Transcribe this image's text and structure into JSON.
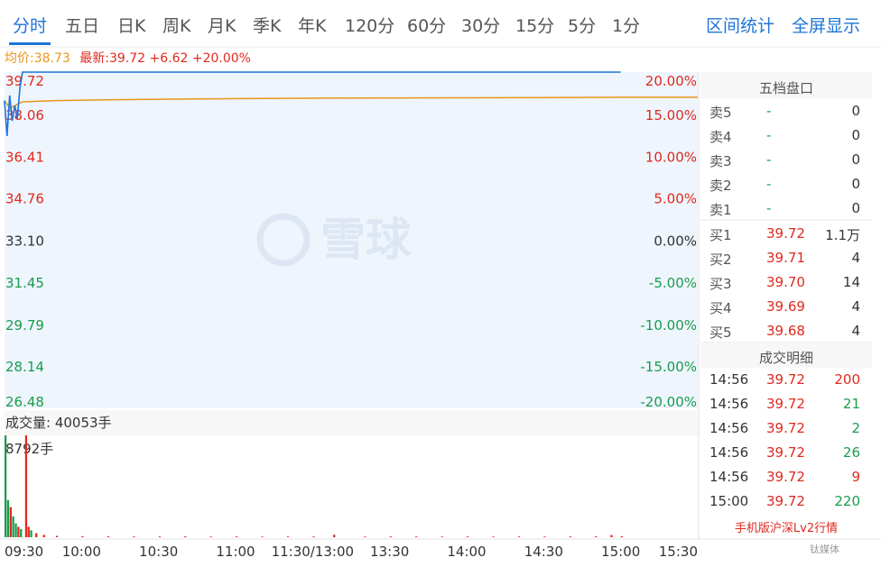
{
  "tabs": [
    {
      "label": "分时",
      "active": true
    },
    {
      "label": "五日"
    },
    {
      "label": "日K"
    },
    {
      "label": "周K"
    },
    {
      "label": "月K"
    },
    {
      "label": "季K"
    },
    {
      "label": "年K"
    },
    {
      "label": "120分"
    },
    {
      "label": "60分"
    },
    {
      "label": "30分"
    },
    {
      "label": "15分"
    },
    {
      "label": "5分"
    },
    {
      "label": "1分"
    }
  ],
  "links": {
    "interval": "区间统计",
    "fullscreen": "全屏显示"
  },
  "info": {
    "avg": "均价:38.73",
    "latest": "最新:39.72 +6.62 +20.00%"
  },
  "watermark": "雪球",
  "volume_label": "成交量: 40053手",
  "volume_max_label": "8792手",
  "orderbook": {
    "title": "五档盘口",
    "sell": [
      {
        "label": "卖5",
        "price": "-",
        "vol": "0"
      },
      {
        "label": "卖4",
        "price": "-",
        "vol": "0"
      },
      {
        "label": "卖3",
        "price": "-",
        "vol": "0"
      },
      {
        "label": "卖2",
        "price": "-",
        "vol": "0"
      },
      {
        "label": "卖1",
        "price": "-",
        "vol": "0"
      }
    ],
    "buy": [
      {
        "label": "买1",
        "price": "39.72",
        "vol": "1.1万"
      },
      {
        "label": "买2",
        "price": "39.71",
        "vol": "4"
      },
      {
        "label": "买3",
        "price": "39.70",
        "vol": "14"
      },
      {
        "label": "买4",
        "price": "39.69",
        "vol": "4"
      },
      {
        "label": "买5",
        "price": "39.68",
        "vol": "4"
      }
    ]
  },
  "trades": {
    "title": "成交明细",
    "rows": [
      {
        "time": "14:56",
        "price": "39.72",
        "vol": "200",
        "side": "buy"
      },
      {
        "time": "14:56",
        "price": "39.72",
        "vol": "21",
        "side": "sell"
      },
      {
        "time": "14:56",
        "price": "39.72",
        "vol": "2",
        "side": "sell"
      },
      {
        "time": "14:56",
        "price": "39.72",
        "vol": "26",
        "side": "sell"
      },
      {
        "time": "14:56",
        "price": "39.72",
        "vol": "9",
        "side": "buy"
      },
      {
        "time": "15:00",
        "price": "39.72",
        "vol": "220",
        "side": "sell"
      }
    ]
  },
  "promo": "手机版沪深Lv2行情",
  "logo": "钛媒体",
  "colors": {
    "price_line": "#1e74d9",
    "avg_line": "#e8961c",
    "up": "#e0291e",
    "down": "#1a9c4d",
    "area": "#eef5fd"
  },
  "chart_data": {
    "type": "line",
    "y_ticks": [
      {
        "price": "39.72",
        "pct": "20.00%"
      },
      {
        "price": "38.06",
        "pct": "15.00%"
      },
      {
        "price": "36.41",
        "pct": "10.00%"
      },
      {
        "price": "34.76",
        "pct": "5.00%"
      },
      {
        "price": "33.10",
        "pct": "0.00%"
      },
      {
        "price": "31.45",
        "pct": "-5.00%"
      },
      {
        "price": "29.79",
        "pct": "-10.00%"
      },
      {
        "price": "28.14",
        "pct": "-15.00%"
      },
      {
        "price": "26.48",
        "pct": "-20.00%"
      }
    ],
    "ylim": [
      26.48,
      39.72
    ],
    "prev_close": 33.1,
    "x_ticks": [
      "09:30",
      "10:00",
      "10:30",
      "11:00",
      "11:30/13:00",
      "13:30",
      "14:00",
      "14:30",
      "15:00",
      "15:30"
    ],
    "x_tick_minutes": [
      0,
      30,
      60,
      90,
      120,
      150,
      180,
      210,
      240,
      270
    ],
    "xlim_minutes": [
      0,
      270
    ],
    "price_series": [
      [
        0,
        38.6
      ],
      [
        1,
        37.2
      ],
      [
        2,
        38.8
      ],
      [
        3,
        37.8
      ],
      [
        4,
        38.4
      ],
      [
        5,
        37.9
      ],
      [
        6,
        39.1
      ],
      [
        7,
        39.72
      ],
      [
        240,
        39.72
      ]
    ],
    "avg_series": [
      [
        0,
        38.6
      ],
      [
        2,
        38.3
      ],
      [
        4,
        38.4
      ],
      [
        7,
        38.55
      ],
      [
        20,
        38.6
      ],
      [
        40,
        38.63
      ],
      [
        70,
        38.66
      ],
      [
        100,
        38.68
      ],
      [
        140,
        38.7
      ],
      [
        180,
        38.71
      ],
      [
        210,
        38.72
      ],
      [
        240,
        38.73
      ],
      [
        270,
        38.73
      ]
    ],
    "volume_series": [
      [
        0,
        8792,
        "down"
      ],
      [
        1,
        3200,
        "down"
      ],
      [
        2,
        2600,
        "up"
      ],
      [
        3,
        1800,
        "down"
      ],
      [
        4,
        1200,
        "down"
      ],
      [
        5,
        900,
        "up"
      ],
      [
        6,
        700,
        "down"
      ],
      [
        8,
        8792,
        "up"
      ],
      [
        9,
        900,
        "up"
      ],
      [
        10,
        600,
        "down"
      ],
      [
        12,
        350,
        "up"
      ],
      [
        15,
        200,
        "up"
      ],
      [
        20,
        120,
        "up"
      ],
      [
        30,
        90,
        "up"
      ],
      [
        40,
        80,
        "up"
      ],
      [
        50,
        70,
        "up"
      ],
      [
        60,
        70,
        "up"
      ],
      [
        70,
        80,
        "up"
      ],
      [
        80,
        60,
        "up"
      ],
      [
        90,
        70,
        "up"
      ],
      [
        100,
        60,
        "up"
      ],
      [
        110,
        70,
        "up"
      ],
      [
        120,
        70,
        "up"
      ],
      [
        128,
        220,
        "up"
      ],
      [
        140,
        60,
        "up"
      ],
      [
        150,
        70,
        "up"
      ],
      [
        160,
        60,
        "up"
      ],
      [
        170,
        60,
        "up"
      ],
      [
        180,
        70,
        "up"
      ],
      [
        190,
        60,
        "up"
      ],
      [
        200,
        70,
        "up"
      ],
      [
        210,
        60,
        "up"
      ],
      [
        220,
        70,
        "up"
      ],
      [
        230,
        80,
        "up"
      ],
      [
        236,
        190,
        "up"
      ],
      [
        240,
        90,
        "up"
      ]
    ],
    "volume_max": 8792
  }
}
